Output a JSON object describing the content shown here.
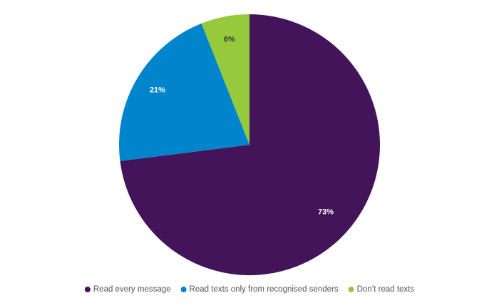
{
  "chart_data": {
    "type": "pie",
    "categories": [
      "Read every message",
      "Read texts only from recognised senders",
      "Don’t read texts"
    ],
    "values": [
      73,
      21,
      6
    ],
    "value_labels": [
      "73%",
      "21%",
      "6%"
    ],
    "colors": [
      "#43145a",
      "#0085cc",
      "#97c93d"
    ],
    "legend": "bottom"
  }
}
